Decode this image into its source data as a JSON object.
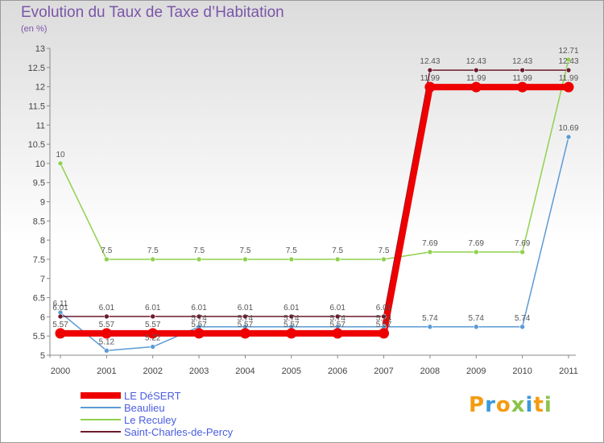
{
  "title": "Evolution du Taux de Taxe d’Habitation",
  "subtitle": "(en %)",
  "logo": {
    "text": "Proxiti",
    "colors": [
      "#f39c12",
      "#3b9ad9",
      "#f39c12",
      "#8bc34a",
      "#3b9ad9",
      "#f39c12",
      "#8bc34a"
    ]
  },
  "chart_data": {
    "type": "line",
    "title": "Evolution du Taux de Taxe d’Habitation",
    "ylabel": "(en %)",
    "xlabel": "",
    "categories": [
      "2000",
      "2001",
      "2002",
      "2003",
      "2004",
      "2005",
      "2006",
      "2007",
      "2008",
      "2009",
      "2010",
      "2011"
    ],
    "ylim": [
      5,
      13
    ],
    "yticks": [
      "5",
      "5.5",
      "6",
      "6.5",
      "7",
      "7.5",
      "8",
      "8.5",
      "9",
      "9.5",
      "10",
      "10.5",
      "11",
      "11.5",
      "12",
      "12.5",
      "13"
    ],
    "grid": false,
    "legend_position": "bottom-left",
    "series": [
      {
        "name": "LE DéSERT",
        "color": "#ee0000",
        "emphasis": true,
        "values": [
          5.57,
          5.57,
          5.57,
          5.57,
          5.57,
          5.57,
          5.57,
          5.57,
          11.99,
          11.99,
          11.99,
          11.99
        ],
        "labels": [
          "5.57",
          "5.57",
          "5.57",
          "5.57",
          "5.57",
          "5.57",
          "5.57",
          "5.57",
          "11.99",
          "11.99",
          "11.99",
          "11.99"
        ]
      },
      {
        "name": "Beaulieu",
        "color": "#5b9bd5",
        "values": [
          6.11,
          5.12,
          5.22,
          5.74,
          5.74,
          5.74,
          5.74,
          5.74,
          5.74,
          5.74,
          5.74,
          10.69
        ],
        "labels": [
          "6.11",
          "5.12",
          "5.22",
          "5.74",
          "5.74",
          "5.74",
          "5.74",
          "5.74",
          "5.74",
          "5.74",
          "5.74",
          "10.69"
        ]
      },
      {
        "name": "Le Reculey",
        "color": "#8fd14f",
        "values": [
          10,
          7.5,
          7.5,
          7.5,
          7.5,
          7.5,
          7.5,
          7.5,
          7.69,
          7.69,
          7.69,
          12.71
        ],
        "labels": [
          "10",
          "7.5",
          "7.5",
          "7.5",
          "7.5",
          "7.5",
          "7.5",
          "7.5",
          "7.69",
          "7.69",
          "7.69",
          "12.71"
        ]
      },
      {
        "name": "Saint-Charles-de-Percy",
        "color": "#6b1a2e",
        "values": [
          6.01,
          6.01,
          6.01,
          6.01,
          6.01,
          6.01,
          6.01,
          6.01,
          12.43,
          12.43,
          12.43,
          12.43
        ],
        "labels": [
          "6.01",
          "6.01",
          "6.01",
          "6.01",
          "6.01",
          "6.01",
          "6.01",
          "6.01",
          "12.43",
          "12.43",
          "12.43",
          "12.43"
        ]
      }
    ]
  }
}
